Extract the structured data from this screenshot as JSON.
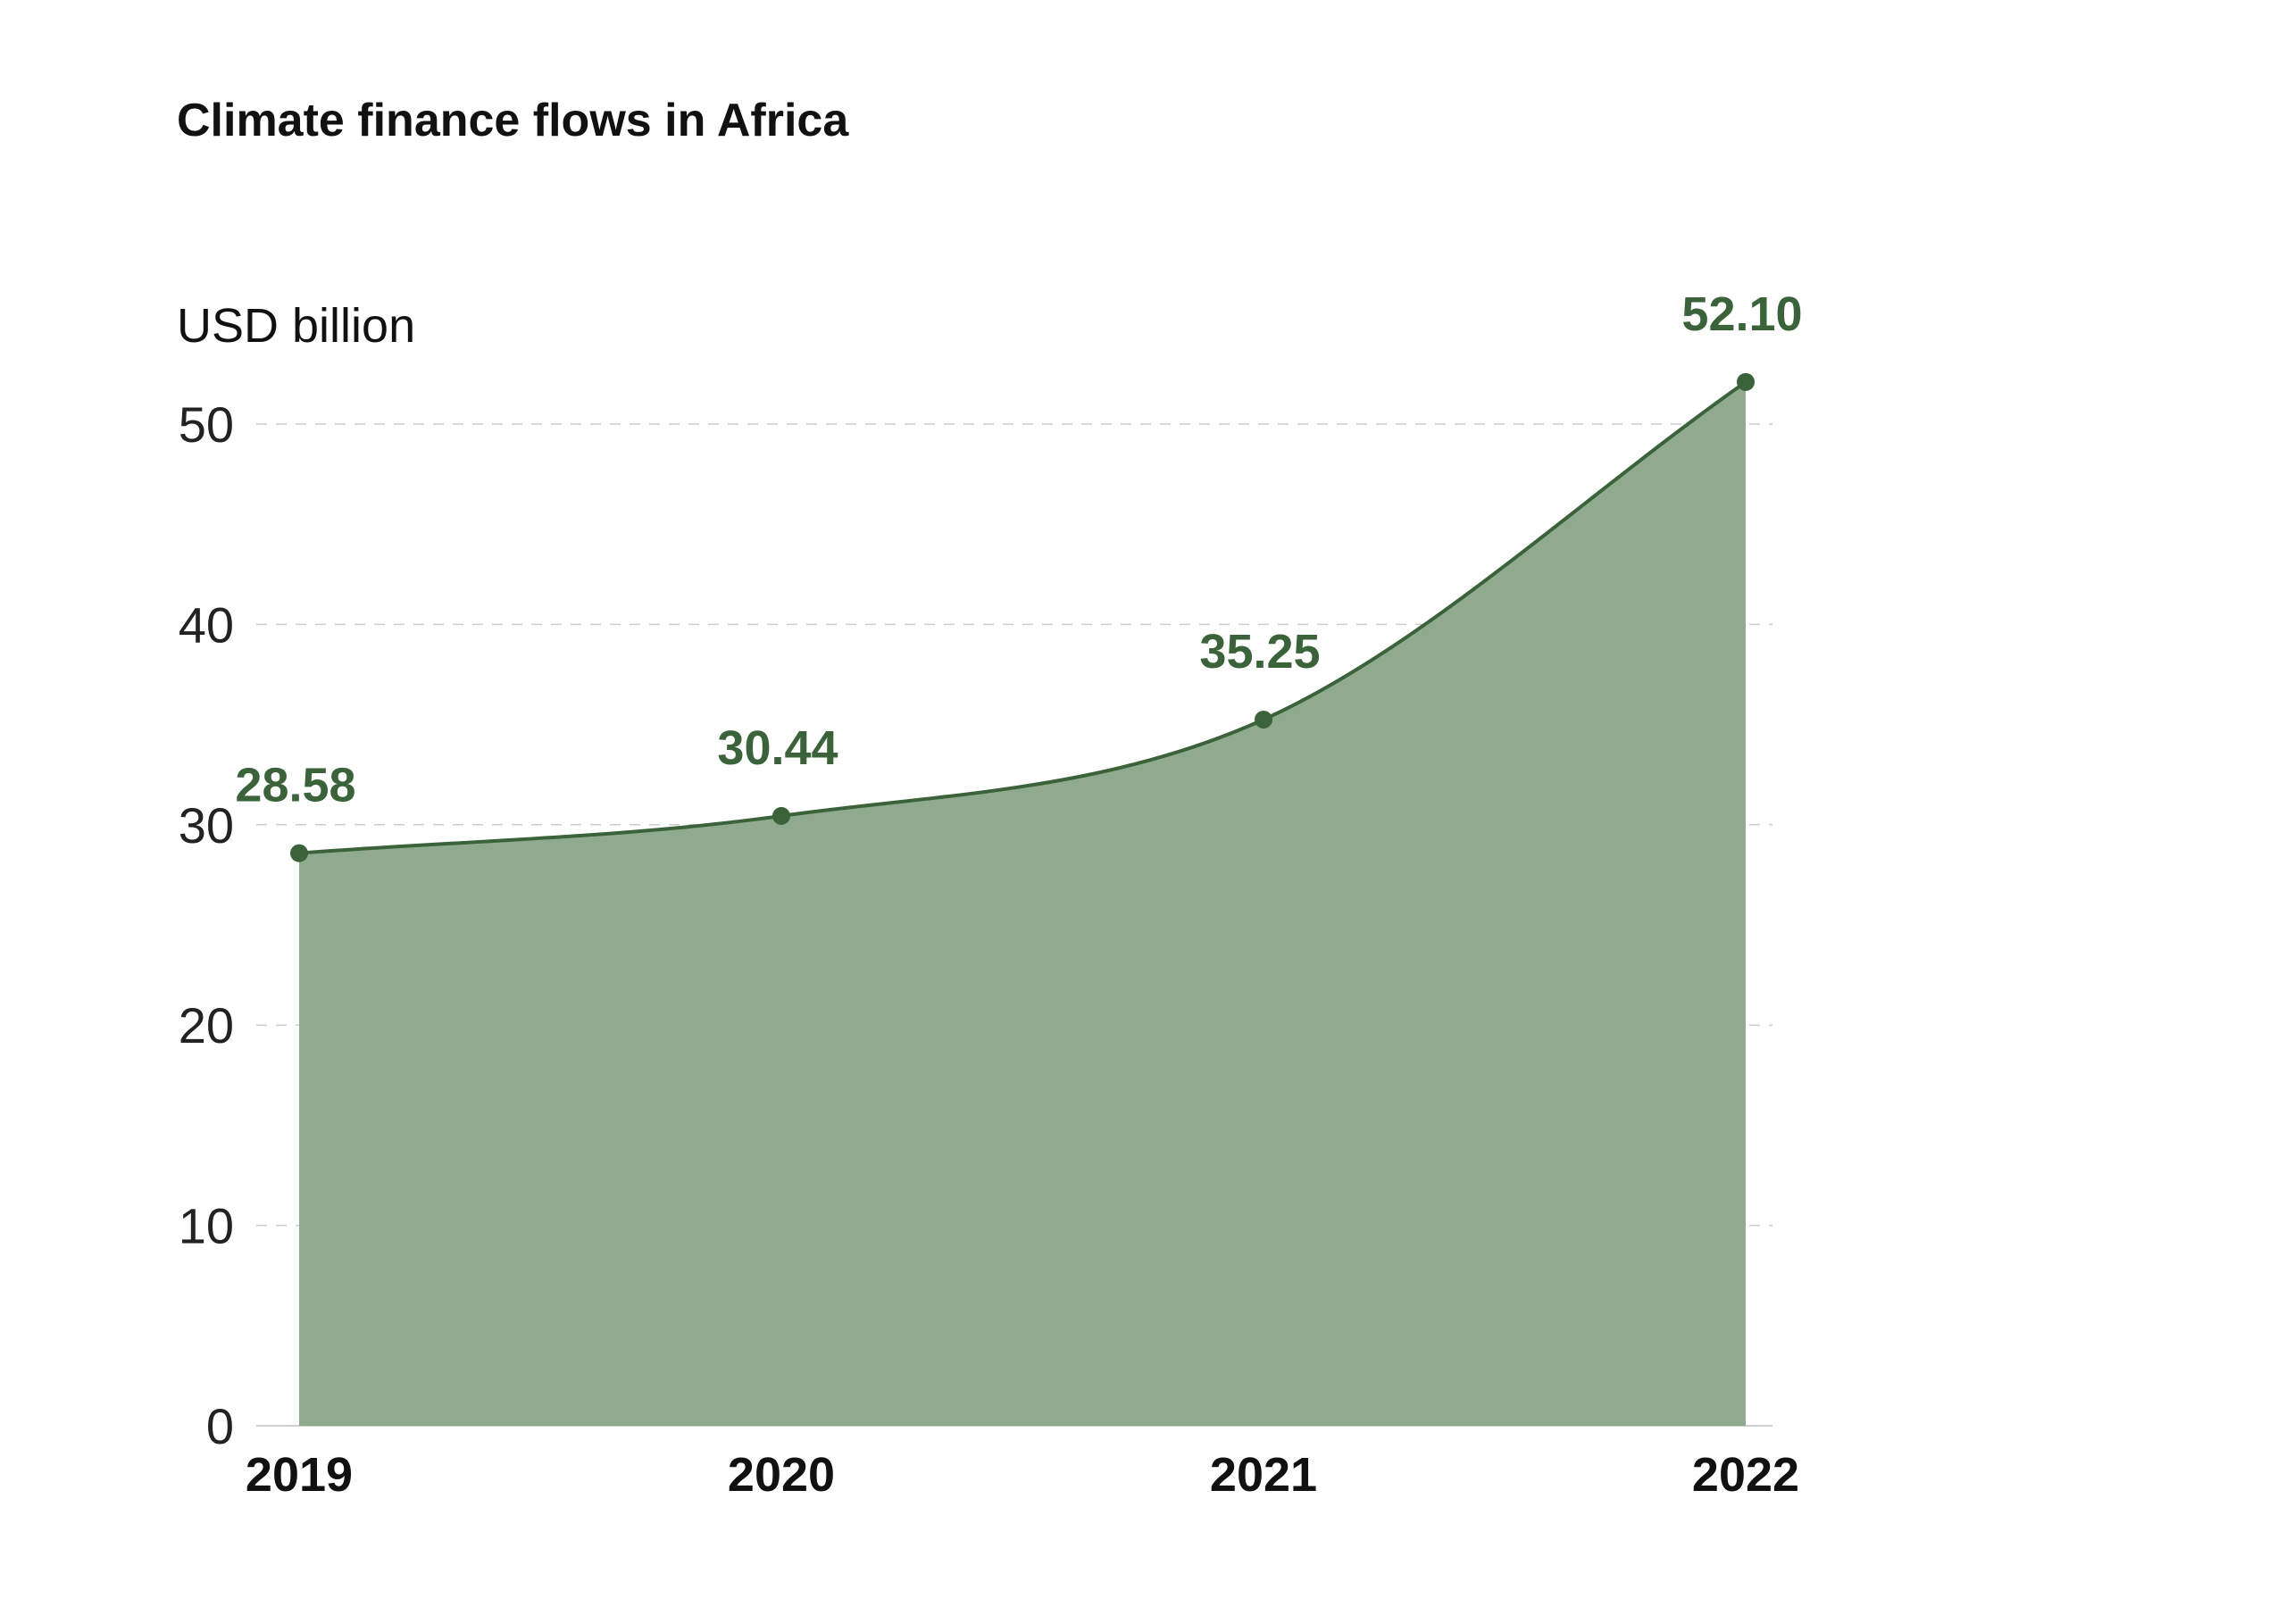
{
  "colors": {
    "line": "#3a6339",
    "area": "#90aa90",
    "grid": "#cccccc",
    "baseline": "#cfcfcf",
    "label": "#3a6339"
  },
  "chart_data": {
    "type": "area",
    "title": "Climate finance flows in Africa",
    "ylabel": "USD billion",
    "xlabel": "",
    "categories": [
      "2019",
      "2020",
      "2021",
      "2022"
    ],
    "values": [
      28.58,
      30.44,
      35.25,
      52.1
    ],
    "value_labels": [
      "28.58",
      "30.44",
      "35.25",
      "52.10"
    ],
    "yticks": [
      0,
      10,
      20,
      30,
      40,
      50
    ],
    "ylim": [
      0,
      52.1
    ],
    "grid": true,
    "legend": "none"
  }
}
